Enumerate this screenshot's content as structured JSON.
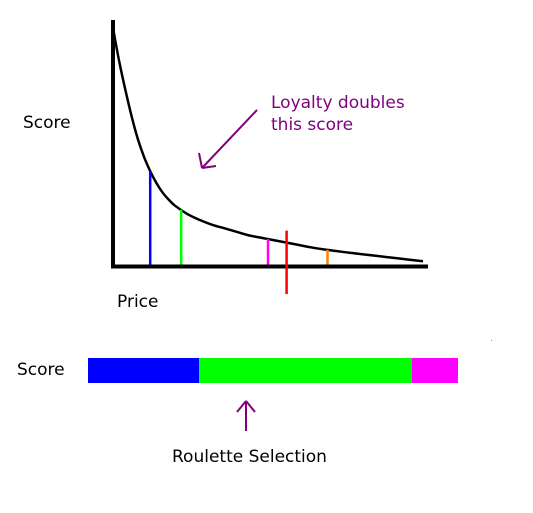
{
  "diagram": {
    "curve_axis_labels": {
      "y": "Score",
      "x": "Price"
    },
    "annotation": {
      "line1": "Loyalty doubles",
      "line2": "this score",
      "color": "#800080"
    },
    "curve": {
      "description_note": "decreasing score vs price curve",
      "color": "#000000",
      "points": [
        [
          0.0,
          10.0
        ],
        [
          0.5,
          8.6
        ],
        [
          1.0,
          7.4
        ],
        [
          1.5,
          6.3
        ],
        [
          2.0,
          5.35
        ],
        [
          2.5,
          4.6
        ],
        [
          3.0,
          4.0
        ],
        [
          3.5,
          3.5
        ],
        [
          4.0,
          3.1
        ],
        [
          4.5,
          2.8
        ],
        [
          5.0,
          2.55
        ],
        [
          6.0,
          2.2
        ],
        [
          7.0,
          1.95
        ],
        [
          8.0,
          1.75
        ],
        [
          9.0,
          1.6
        ],
        [
          10.0,
          1.45
        ],
        [
          11.0,
          1.3
        ],
        [
          12.0,
          1.2
        ],
        [
          13.0,
          1.1
        ],
        [
          14.0,
          1.0
        ],
        [
          15.0,
          0.9
        ],
        [
          16.0,
          0.8
        ],
        [
          17.0,
          0.72
        ],
        [
          18.0,
          0.65
        ],
        [
          19.0,
          0.58
        ],
        [
          20.0,
          0.52
        ],
        [
          21.0,
          0.46
        ],
        [
          22.0,
          0.4
        ],
        [
          23.0,
          0.34
        ],
        [
          24.0,
          0.28
        ],
        [
          25.0,
          0.22
        ]
      ],
      "x_range": [
        0,
        25
      ],
      "y_range": [
        -2.5,
        10
      ]
    },
    "samples": [
      {
        "name": "blue",
        "price": 3.0,
        "color": "#0000ff"
      },
      {
        "name": "green",
        "price": 5.5,
        "color": "#00ff00"
      },
      {
        "name": "magenta",
        "price": 12.5,
        "color": "#ff00ff"
      },
      {
        "name": "red",
        "price": 14.0,
        "color": "#ff0000",
        "extends_below_axis": true
      },
      {
        "name": "orange",
        "price": 17.3,
        "color": "#ff8000"
      }
    ],
    "roulette": {
      "label": "Score",
      "segments": [
        {
          "name": "blue",
          "share": 0.3,
          "color": "#0000ff"
        },
        {
          "name": "green",
          "share": 0.575,
          "color": "#00ff00"
        },
        {
          "name": "magenta",
          "share": 0.125,
          "color": "#ff00ff"
        }
      ],
      "pointer_color": "#800080",
      "caption": "Roulette Selection"
    }
  }
}
